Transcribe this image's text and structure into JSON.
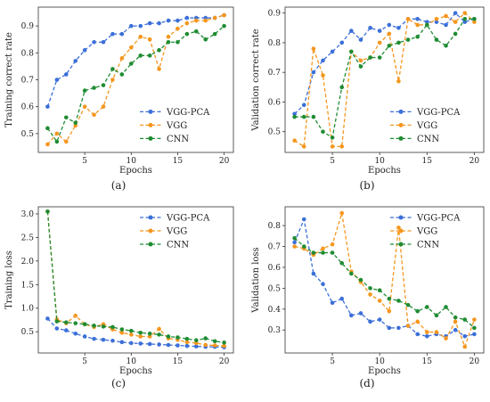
{
  "colors": {
    "VGG-PCA": "#3b6fd8",
    "VGG": "#f5961e",
    "CNN": "#1f8c33"
  },
  "chart_data": [
    {
      "type": "line",
      "panel": "(a)",
      "xlabel": "Epochs",
      "ylabel": "Training correct rate",
      "xlim": [
        0,
        21
      ],
      "ylim": [
        0.43,
        0.97
      ],
      "xticks": [
        5,
        10,
        15,
        20
      ],
      "xtick_labels": [
        "5",
        "10",
        "15",
        "20"
      ],
      "yticks": [
        0.5,
        0.6,
        0.7,
        0.8,
        0.9
      ],
      "ytick_labels": [
        "0.5",
        "0.6",
        "0.7",
        "0.8",
        "0.9"
      ],
      "legend": "center-right",
      "x": [
        1,
        2,
        3,
        4,
        5,
        6,
        7,
        8,
        9,
        10,
        11,
        12,
        13,
        14,
        15,
        16,
        17,
        18,
        19,
        20
      ],
      "series": [
        {
          "name": "VGG-PCA",
          "values": [
            0.6,
            0.7,
            0.72,
            0.77,
            0.81,
            0.84,
            0.84,
            0.87,
            0.87,
            0.9,
            0.9,
            0.91,
            0.91,
            0.92,
            0.92,
            0.93,
            0.93,
            0.93,
            0.93,
            0.94
          ]
        },
        {
          "name": "VGG",
          "values": [
            0.46,
            0.5,
            0.47,
            0.53,
            0.6,
            0.57,
            0.6,
            0.7,
            0.78,
            0.82,
            0.86,
            0.85,
            0.74,
            0.86,
            0.89,
            0.91,
            0.92,
            0.92,
            0.93,
            0.94
          ]
        },
        {
          "name": "CNN",
          "values": [
            0.52,
            0.47,
            0.56,
            0.54,
            0.66,
            0.67,
            0.68,
            0.74,
            0.72,
            0.76,
            0.79,
            0.79,
            0.81,
            0.84,
            0.84,
            0.87,
            0.88,
            0.85,
            0.87,
            0.9
          ]
        }
      ]
    },
    {
      "type": "line",
      "panel": "(b)",
      "xlabel": "Epochs",
      "ylabel": "Validation correct rate",
      "xlim": [
        0,
        21
      ],
      "ylim": [
        0.43,
        0.92
      ],
      "xticks": [
        5,
        10,
        15,
        20
      ],
      "xtick_labels": [
        "5",
        "10",
        "15",
        "20"
      ],
      "yticks": [
        0.5,
        0.6,
        0.7,
        0.8,
        0.9
      ],
      "ytick_labels": [
        "0.5",
        "0.6",
        "0.7",
        "0.8",
        "0.9"
      ],
      "legend": "center-right",
      "x": [
        1,
        2,
        3,
        4,
        5,
        6,
        7,
        8,
        9,
        10,
        11,
        12,
        13,
        14,
        15,
        16,
        17,
        18,
        19,
        20
      ],
      "series": [
        {
          "name": "VGG-PCA",
          "values": [
            0.56,
            0.59,
            0.7,
            0.74,
            0.77,
            0.8,
            0.84,
            0.81,
            0.85,
            0.84,
            0.86,
            0.85,
            0.88,
            0.88,
            0.87,
            0.87,
            0.86,
            0.9,
            0.87,
            0.88
          ]
        },
        {
          "name": "VGG",
          "values": [
            0.47,
            0.45,
            0.78,
            0.69,
            0.45,
            0.45,
            0.77,
            0.74,
            0.75,
            0.8,
            0.83,
            0.67,
            0.88,
            0.86,
            0.86,
            0.88,
            0.89,
            0.87,
            0.9,
            0.87
          ]
        },
        {
          "name": "CNN",
          "values": [
            0.55,
            0.55,
            0.55,
            0.5,
            0.48,
            0.65,
            0.77,
            0.72,
            0.75,
            0.75,
            0.79,
            0.8,
            0.81,
            0.82,
            0.86,
            0.81,
            0.79,
            0.83,
            0.88,
            0.88
          ]
        }
      ]
    },
    {
      "type": "line",
      "panel": "(c)",
      "xlabel": "Epochs",
      "ylabel": "Training loss",
      "xlim": [
        0,
        21
      ],
      "ylim": [
        0.05,
        3.15
      ],
      "xticks": [
        5,
        10,
        15,
        20
      ],
      "xtick_labels": [
        "5",
        "10",
        "15",
        "20"
      ],
      "yticks": [
        0.5,
        1.0,
        1.5,
        2.0,
        2.5,
        3.0
      ],
      "ytick_labels": [
        "0.5",
        "1.0",
        "1.5",
        "2.0",
        "2.5",
        "3.0"
      ],
      "legend": "upper-right",
      "x": [
        1,
        2,
        3,
        4,
        5,
        6,
        7,
        8,
        9,
        10,
        11,
        12,
        13,
        14,
        15,
        16,
        17,
        18,
        19,
        20
      ],
      "series": [
        {
          "name": "VGG-PCA",
          "values": [
            0.78,
            0.57,
            0.53,
            0.46,
            0.4,
            0.35,
            0.33,
            0.31,
            0.28,
            0.26,
            0.25,
            0.24,
            0.23,
            0.22,
            0.21,
            0.2,
            0.19,
            0.18,
            0.18,
            0.17
          ]
        },
        {
          "name": "VGG",
          "values": [
            3.05,
            0.76,
            0.68,
            0.84,
            0.66,
            0.6,
            0.66,
            0.55,
            0.48,
            0.44,
            0.4,
            0.4,
            0.56,
            0.36,
            0.33,
            0.28,
            0.26,
            0.22,
            0.21,
            0.2
          ]
        },
        {
          "name": "CNN",
          "values": [
            3.05,
            0.72,
            0.7,
            0.68,
            0.66,
            0.63,
            0.61,
            0.6,
            0.55,
            0.52,
            0.48,
            0.46,
            0.44,
            0.4,
            0.38,
            0.35,
            0.32,
            0.36,
            0.3,
            0.27
          ]
        }
      ]
    },
    {
      "type": "line",
      "panel": "(d)",
      "xlabel": "Epochs",
      "ylabel": "Validation loss",
      "xlim": [
        0,
        21
      ],
      "ylim": [
        0.19,
        0.89
      ],
      "xticks": [
        5,
        10,
        15,
        20
      ],
      "xtick_labels": [
        "5",
        "10",
        "15",
        "20"
      ],
      "yticks": [
        0.3,
        0.4,
        0.5,
        0.6,
        0.7,
        0.8
      ],
      "ytick_labels": [
        "0.3",
        "0.4",
        "0.5",
        "0.6",
        "0.7",
        "0.8"
      ],
      "legend": "upper-right",
      "x": [
        1,
        2,
        3,
        4,
        5,
        6,
        7,
        8,
        9,
        10,
        11,
        12,
        13,
        14,
        15,
        16,
        17,
        18,
        19,
        20
      ],
      "series": [
        {
          "name": "VGG-PCA",
          "values": [
            0.72,
            0.83,
            0.57,
            0.52,
            0.43,
            0.45,
            0.37,
            0.38,
            0.34,
            0.35,
            0.31,
            0.31,
            0.32,
            0.28,
            0.27,
            0.28,
            0.27,
            0.3,
            0.27,
            0.28
          ]
        },
        {
          "name": "VGG",
          "values": [
            0.7,
            0.69,
            0.66,
            0.69,
            0.71,
            0.86,
            0.58,
            0.53,
            0.47,
            0.44,
            0.39,
            0.79,
            0.32,
            0.34,
            0.29,
            0.29,
            0.26,
            0.34,
            0.22,
            0.35
          ]
        },
        {
          "name": "CNN",
          "values": [
            0.74,
            0.7,
            0.67,
            0.67,
            0.67,
            0.62,
            0.57,
            0.54,
            0.5,
            0.49,
            0.45,
            0.44,
            0.42,
            0.39,
            0.41,
            0.37,
            0.41,
            0.36,
            0.35,
            0.31
          ]
        }
      ]
    }
  ]
}
